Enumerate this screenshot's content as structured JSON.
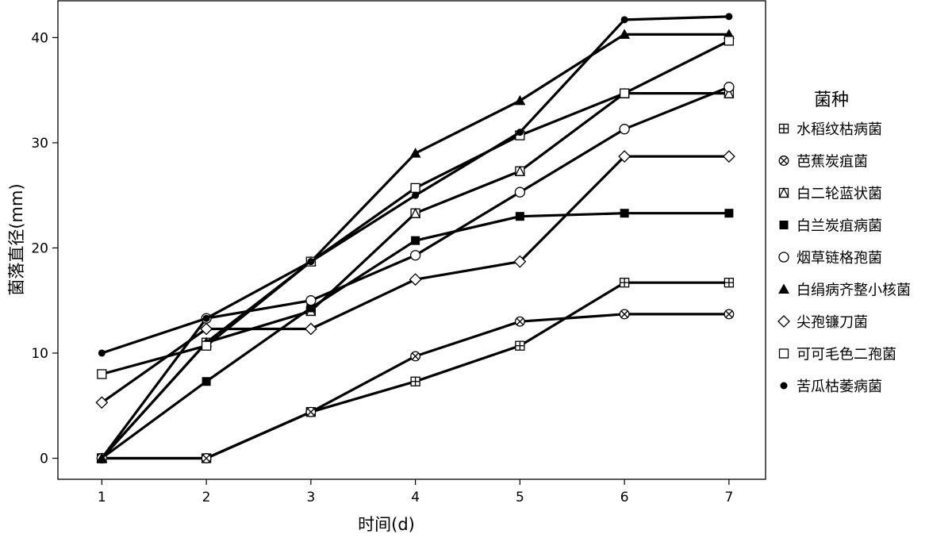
{
  "chart_data": {
    "type": "line",
    "xlabel": "时间(d)",
    "ylabel": "菌落直径(mm)",
    "x": [
      1,
      2,
      3,
      4,
      5,
      6,
      7
    ],
    "xlim": [
      0.58,
      7.35
    ],
    "ylim": [
      -2,
      43.5
    ],
    "xticks": [
      1,
      2,
      3,
      4,
      5,
      6,
      7
    ],
    "yticks": [
      0,
      10,
      20,
      30,
      40
    ],
    "grid": false,
    "legend": {
      "title": "菌种",
      "position": "right"
    },
    "series": [
      {
        "name": "水稻纹枯病菌",
        "marker": "square-plus",
        "values": [
          0,
          0,
          4.4,
          7.3,
          10.7,
          16.7,
          16.7
        ]
      },
      {
        "name": "芭蕉炭疽菌",
        "marker": "circle-x",
        "values": [
          0,
          0,
          4.4,
          9.7,
          13.0,
          13.7,
          13.7
        ]
      },
      {
        "name": "白二轮蓝状菌",
        "marker": "square-triangle",
        "values": [
          0,
          11.0,
          14.0,
          23.3,
          27.3,
          34.7,
          34.7
        ]
      },
      {
        "name": "白兰炭疽病菌",
        "marker": "square-filled",
        "values": [
          0,
          7.3,
          14.3,
          20.7,
          23.0,
          23.3,
          23.3
        ]
      },
      {
        "name": "烟草链格孢菌",
        "marker": "circle-open",
        "values": [
          0,
          13.3,
          15.0,
          19.3,
          25.3,
          31.3,
          35.3
        ]
      },
      {
        "name": "白绢病齐整小核菌",
        "marker": "triangle-filled",
        "values": [
          0,
          11.0,
          18.7,
          29.0,
          34.0,
          40.3,
          40.3
        ]
      },
      {
        "name": "尖孢镰刀菌",
        "marker": "diamond-open",
        "values": [
          5.3,
          12.3,
          12.3,
          17.0,
          18.7,
          28.7,
          28.7
        ]
      },
      {
        "name": "可可毛色二孢菌",
        "marker": "square-open",
        "values": [
          8.0,
          10.7,
          18.7,
          25.7,
          30.7,
          34.7,
          39.7
        ]
      },
      {
        "name": "苦瓜枯萎病菌",
        "marker": "circle-filled",
        "values": [
          10.0,
          13.3,
          18.7,
          25.0,
          31.0,
          41.7,
          42.0
        ]
      }
    ]
  }
}
